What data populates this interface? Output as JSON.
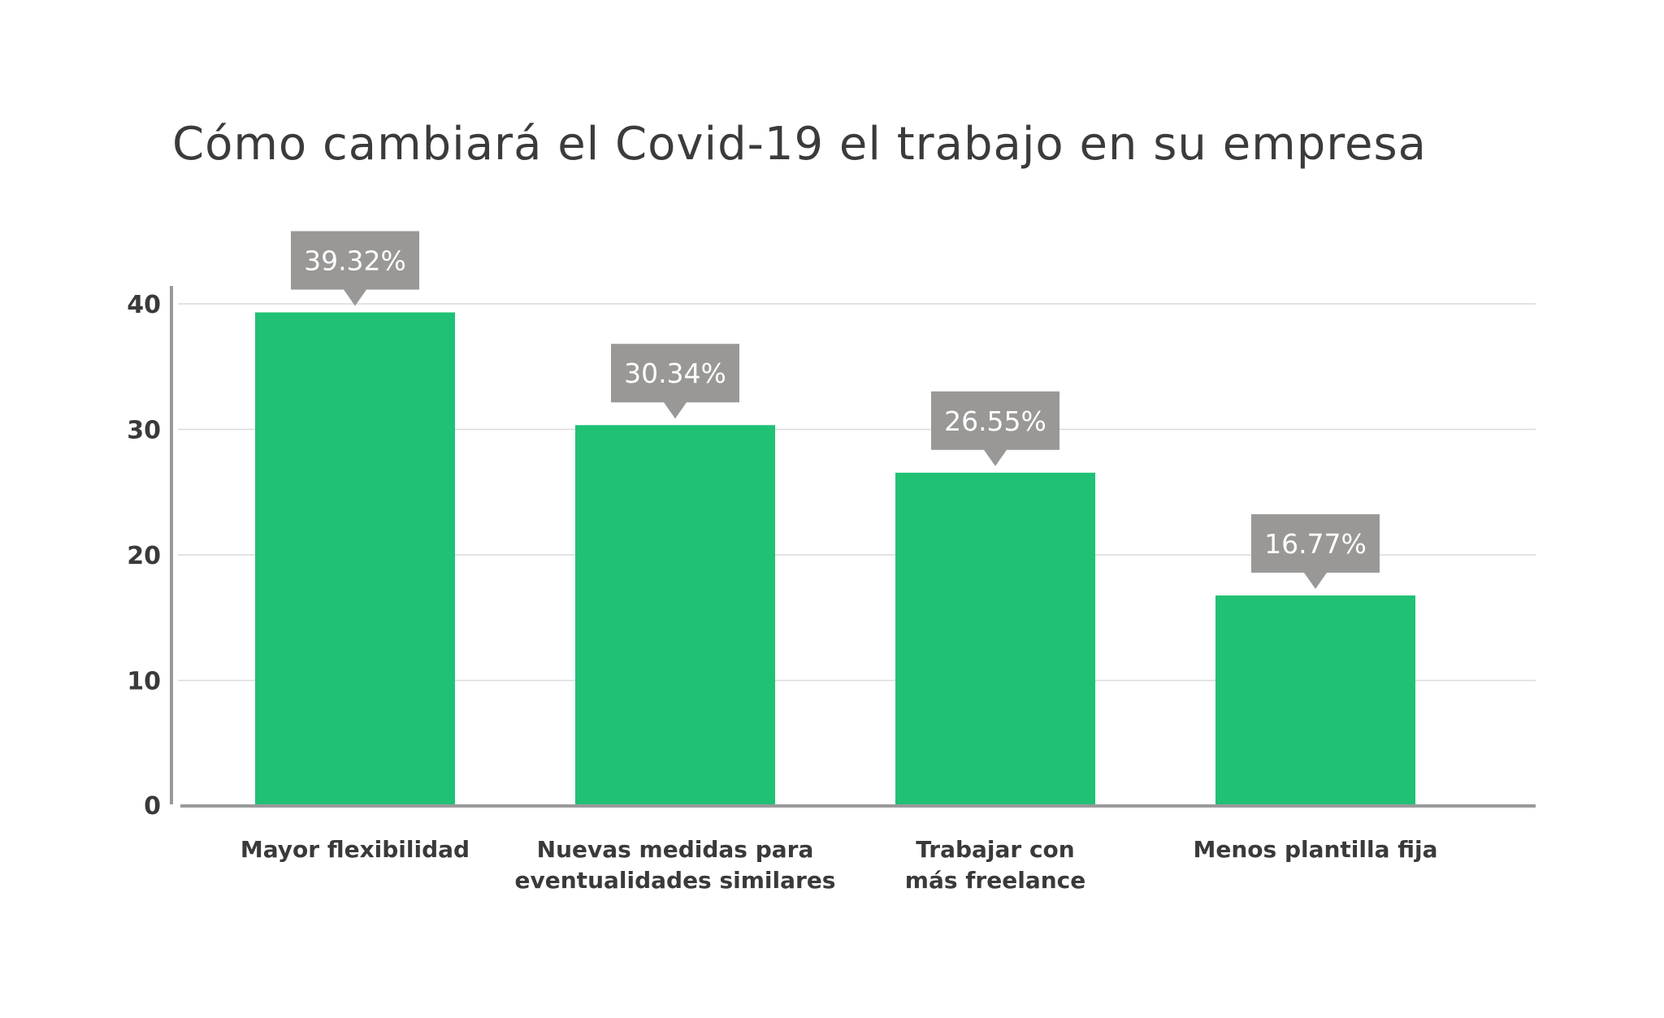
{
  "chart_data": {
    "type": "bar",
    "title": "Cómo cambiará el Covid-19 el trabajo en su empresa",
    "xlabel": "",
    "ylabel": "",
    "categories": [
      [
        "Mayor flexibilidad"
      ],
      [
        "Nuevas medidas para",
        "eventualidades similares"
      ],
      [
        "Trabajar con",
        "más freelance"
      ],
      [
        "Menos plantilla fija"
      ]
    ],
    "values": [
      39.32,
      30.34,
      26.55,
      16.77
    ],
    "data_labels": [
      "39.32%",
      "30.34%",
      "26.55%",
      "16.77%"
    ],
    "y_ticks": [
      0,
      10,
      20,
      30,
      40
    ],
    "ylim": [
      0,
      46
    ],
    "grid": true,
    "legend": "none",
    "colors": {
      "bar": "#20c174",
      "label_box": "#999896",
      "label_text": "#ffffff",
      "grid": "#d9d9d9",
      "axis": "#9a9a9a",
      "text": "#3a3a3a"
    }
  }
}
